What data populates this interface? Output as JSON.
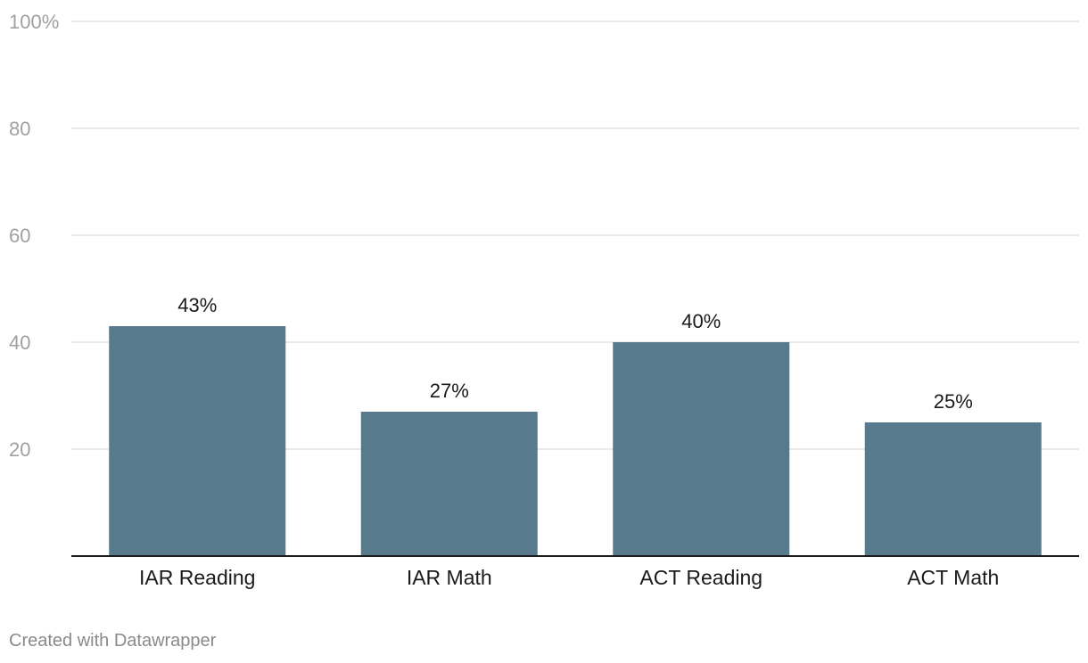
{
  "chart_data": {
    "type": "bar",
    "categories": [
      "IAR Reading",
      "IAR Math",
      "ACT Reading",
      "ACT Math"
    ],
    "values": [
      43,
      27,
      40,
      25
    ],
    "value_labels": [
      "43%",
      "27%",
      "40%",
      "25%"
    ],
    "ylim": [
      0,
      100
    ],
    "yticks": [
      20,
      40,
      60,
      80,
      100
    ],
    "ytick_labels": [
      "20",
      "40",
      "60",
      "80",
      "100%"
    ],
    "grid": true,
    "bar_color": "#587a8d"
  },
  "footer": {
    "credit": "Created with Datawrapper"
  }
}
